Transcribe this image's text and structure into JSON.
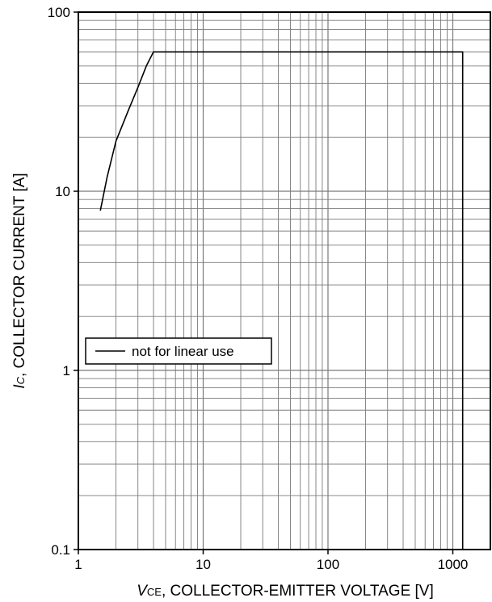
{
  "chart_data": {
    "type": "line",
    "x_scale": "log",
    "y_scale": "log",
    "xlim": [
      1,
      2000
    ],
    "ylim": [
      0.1,
      100
    ],
    "x_ticks": [
      1,
      10,
      100,
      1000
    ],
    "x_tick_labels": [
      "1",
      "10",
      "100",
      "1000"
    ],
    "y_ticks": [
      0.1,
      1,
      10,
      100
    ],
    "y_tick_labels": [
      "0.1",
      "1",
      "10",
      "100"
    ],
    "xlabel_var": "V",
    "xlabel_sub": "CE",
    "xlabel_text": ", COLLECTOR-EMITTER VOLTAGE [V]",
    "ylabel_var": "I",
    "ylabel_sub": "C",
    "ylabel_text": ", COLLECTOR CURRENT [A]",
    "grid": true,
    "legend_position": "lower-left",
    "series": [
      {
        "name": "not for linear use",
        "color": "#000000",
        "points": [
          [
            1.5,
            7.8
          ],
          [
            1.7,
            12
          ],
          [
            2.0,
            19
          ],
          [
            2.5,
            28
          ],
          [
            3.0,
            38
          ],
          [
            3.5,
            50
          ],
          [
            4.0,
            60
          ],
          [
            1200,
            60
          ],
          [
            1200,
            0.1
          ]
        ]
      }
    ]
  }
}
